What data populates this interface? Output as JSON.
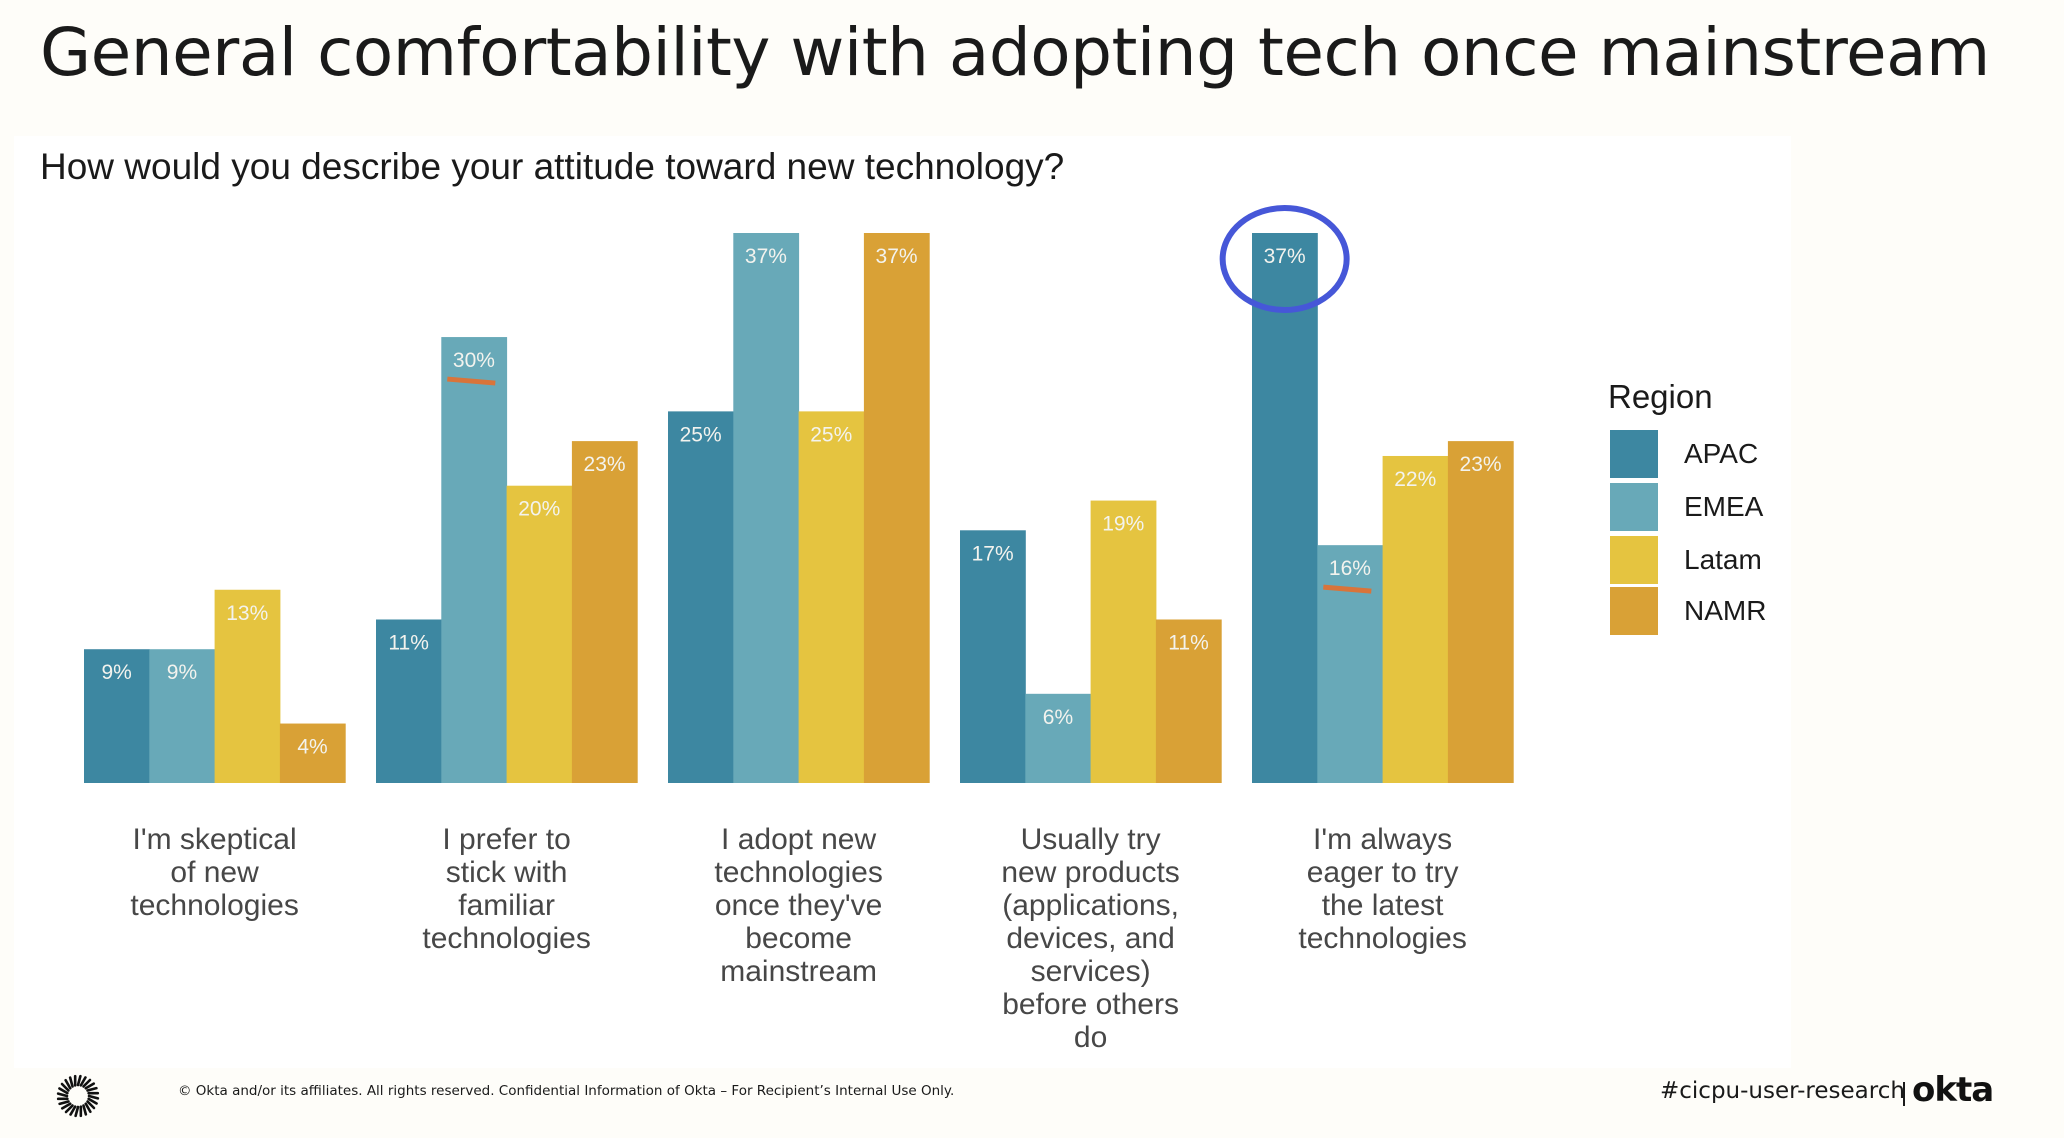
{
  "slide": {
    "title": "General comfortability with adopting tech once mainstream",
    "footer_copyright": "© Okta and/or its affiliates. All rights reserved. Confidential Information of Okta – For Recipient’s Internal Use Only.",
    "footer_channel": "#cicpu-user-research",
    "footer_brand": "okta",
    "logo_icon": "okta-sunburst-icon"
  },
  "chart_data": {
    "type": "bar",
    "title": "How would you describe your attitude toward new technology?",
    "xlabel": "",
    "ylabel": "",
    "ylim": [
      0,
      37
    ],
    "grid": false,
    "legend": {
      "title": "Region",
      "position": "right"
    },
    "categories": [
      "I'm skeptical\nof new\ntechnologies",
      "I prefer to\nstick with\nfamiliar\ntechnologies",
      "I adopt new\ntechnologies\nonce they've\nbecome\nmainstream",
      "Usually try\nnew products\n(applications,\ndevices, and\nservices)\nbefore others\ndo",
      "I'm always\neager to try\nthe latest\ntechnologies"
    ],
    "series": [
      {
        "name": "APAC",
        "color": "#3d87a1",
        "values": [
          9,
          11,
          25,
          17,
          37
        ]
      },
      {
        "name": "EMEA",
        "color": "#68a9b8",
        "values": [
          9,
          30,
          37,
          6,
          16
        ]
      },
      {
        "name": "Latam",
        "color": "#e5c440",
        "values": [
          13,
          20,
          25,
          19,
          22
        ]
      },
      {
        "name": "NAMR",
        "color": "#d9a136",
        "values": [
          4,
          23,
          37,
          11,
          23
        ]
      }
    ],
    "value_format": "{v}%",
    "annotations": [
      {
        "type": "ellipse-highlight",
        "category_index": 4,
        "series": "APAC",
        "color": "#4657d8"
      },
      {
        "type": "underline",
        "category_index": 1,
        "series": "EMEA",
        "color": "#d9743a"
      },
      {
        "type": "underline",
        "category_index": 4,
        "series": "EMEA",
        "color": "#d9743a"
      }
    ]
  }
}
